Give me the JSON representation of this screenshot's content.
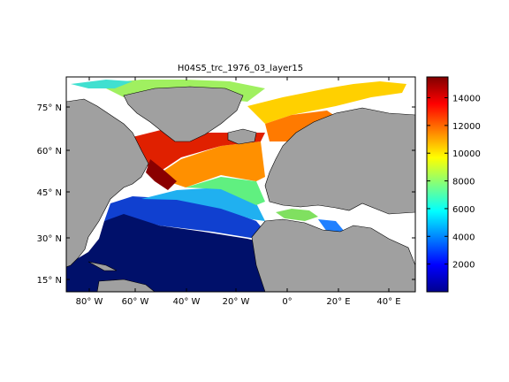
{
  "map": {
    "title": "H04S5_trc_1976_03_layer15",
    "x_ticks": [
      "80° W",
      "60° W",
      "40° W",
      "20° W",
      "0°",
      "20° E",
      "40° E"
    ],
    "y_ticks": [
      "75° N",
      "60° N",
      "45° N",
      "30° N",
      "15° N"
    ],
    "lon_range": [
      -90,
      48
    ],
    "lat_range": [
      10,
      83
    ],
    "land_color": "#a0a0a0",
    "nodata_color": "#ffffff",
    "colormap": "jet"
  },
  "colorbar": {
    "range": [
      0,
      15500
    ],
    "ticks": [
      "14000",
      "12000",
      "10000",
      "8000",
      "6000",
      "4000",
      "2000"
    ],
    "tick_values": [
      14000,
      12000,
      10000,
      8000,
      6000,
      4000,
      2000
    ]
  }
}
